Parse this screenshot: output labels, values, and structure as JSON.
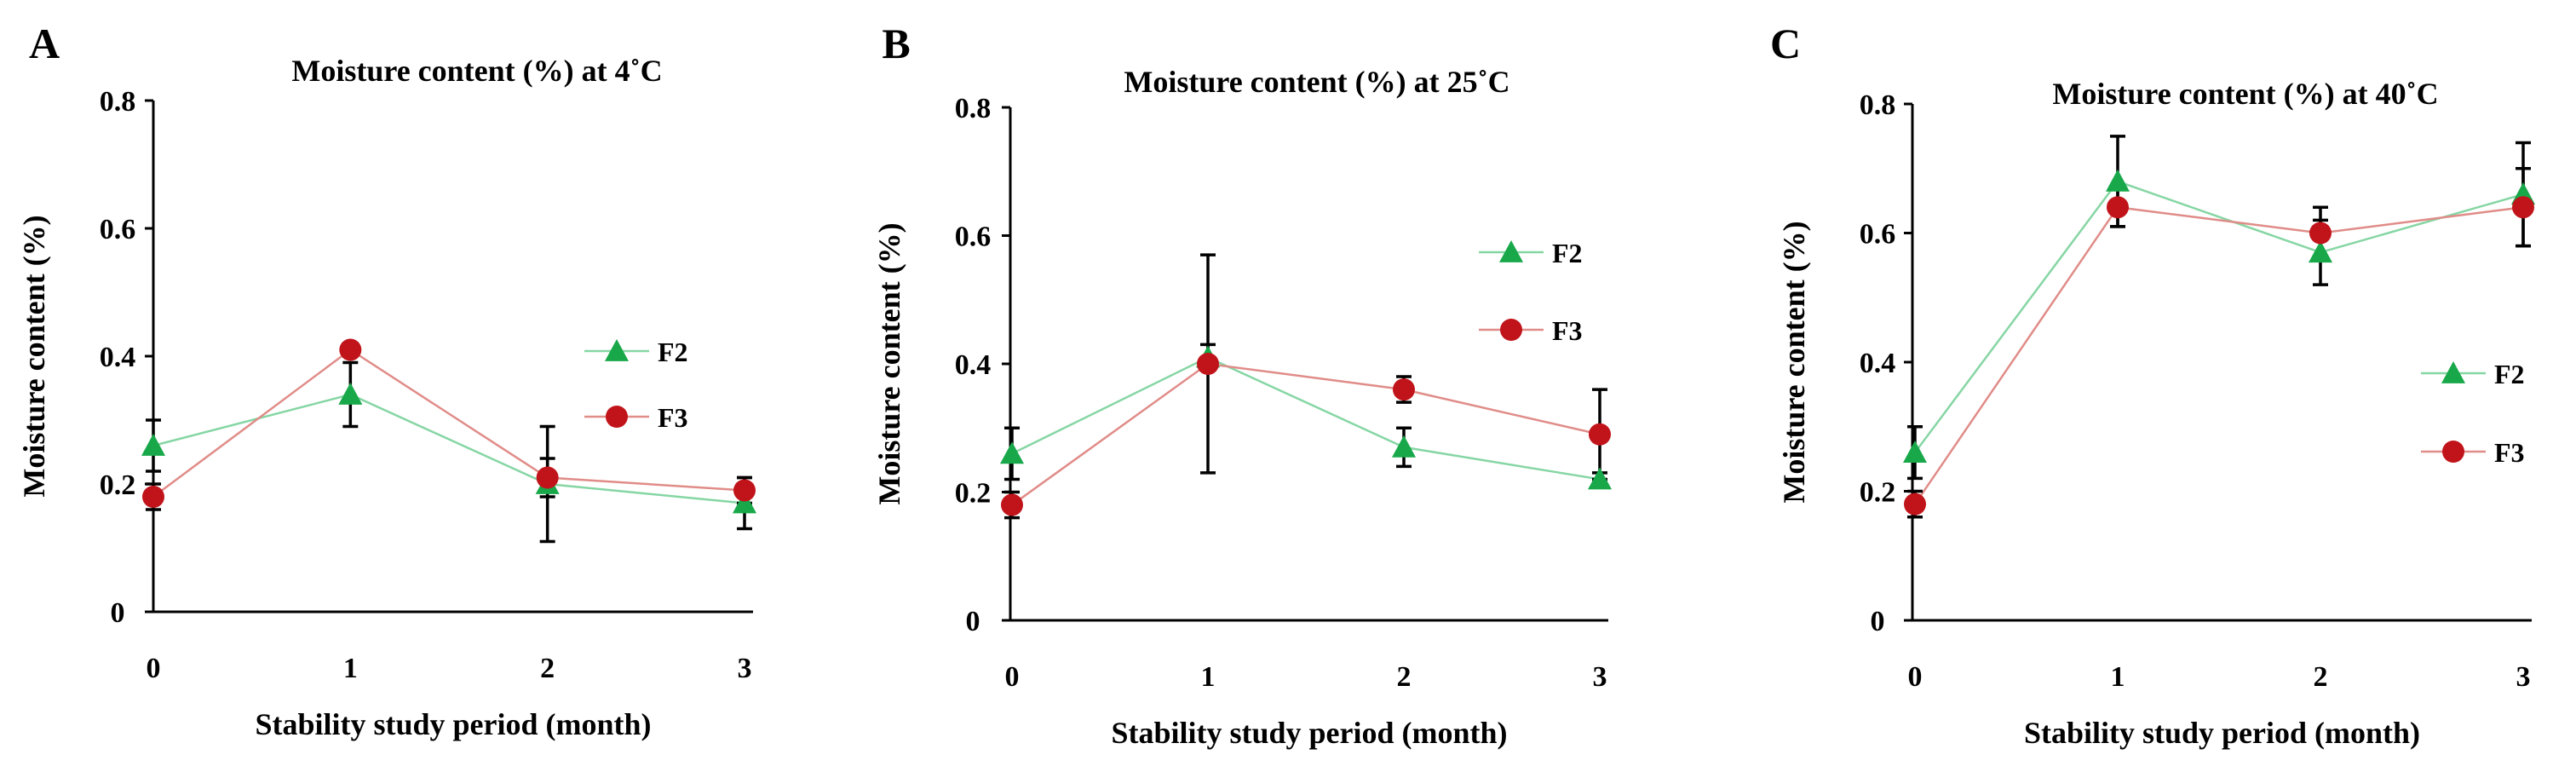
{
  "colors": {
    "f2": "#18a84a",
    "f3": "#c0141a",
    "f2_line": "#86d6a4",
    "f3_line": "#e08c88",
    "axis": "#000000"
  },
  "chart_data": [
    {
      "type": "line",
      "panel": "A",
      "title": "Moisture content (%) at 4˚C",
      "xlabel": "Stability study period (month)",
      "ylabel": "Moisture content (%)",
      "categories": [
        "0",
        "1",
        "2",
        "3"
      ],
      "ylim": [
        0,
        0.8
      ],
      "yticks": [
        "0",
        "0.2",
        "0.4",
        "0.6",
        "0.8"
      ],
      "legend_position": "center-right",
      "series": [
        {
          "name": "F2",
          "values": [
            0.26,
            0.34,
            0.2,
            0.17
          ],
          "errors": [
            0.04,
            0.05,
            0.09,
            0.04
          ]
        },
        {
          "name": "F3",
          "values": [
            0.18,
            0.41,
            0.21,
            0.19
          ],
          "errors": [
            0.02,
            0.01,
            0.03,
            0.02
          ]
        }
      ]
    },
    {
      "type": "line",
      "panel": "B",
      "title": "Moisture content (%) at 25˚C",
      "xlabel": "Stability study period (month)",
      "ylabel": "Moisture content (%)",
      "categories": [
        "0",
        "1",
        "2",
        "3"
      ],
      "ylim": [
        0,
        0.8
      ],
      "yticks": [
        "0",
        "0.2",
        "0.4",
        "0.6",
        "0.8"
      ],
      "legend_position": "top-right",
      "series": [
        {
          "name": "F2",
          "values": [
            0.26,
            0.41,
            0.27,
            0.22
          ],
          "errors": [
            0.04,
            0.02,
            0.03,
            0.01
          ]
        },
        {
          "name": "F3",
          "values": [
            0.18,
            0.4,
            0.36,
            0.29
          ],
          "errors": [
            0.02,
            0.17,
            0.02,
            0.07
          ]
        }
      ]
    },
    {
      "type": "line",
      "panel": "C",
      "title": "Moisture content (%) at 40˚C",
      "xlabel": "Stability study period (month)",
      "ylabel": "Moisture content (%)",
      "categories": [
        "0",
        "1",
        "2",
        "3"
      ],
      "ylim": [
        0,
        0.8
      ],
      "yticks": [
        "0",
        "0.2",
        "0.4",
        "0.6",
        "0.8"
      ],
      "legend_position": "center-right",
      "series": [
        {
          "name": "F2",
          "values": [
            0.26,
            0.68,
            0.57,
            0.66
          ],
          "errors": [
            0.04,
            0.07,
            0.05,
            0.08
          ]
        },
        {
          "name": "F3",
          "values": [
            0.18,
            0.64,
            0.6,
            0.64
          ],
          "errors": [
            0.02,
            0.03,
            0.04,
            0.06
          ]
        }
      ]
    }
  ]
}
